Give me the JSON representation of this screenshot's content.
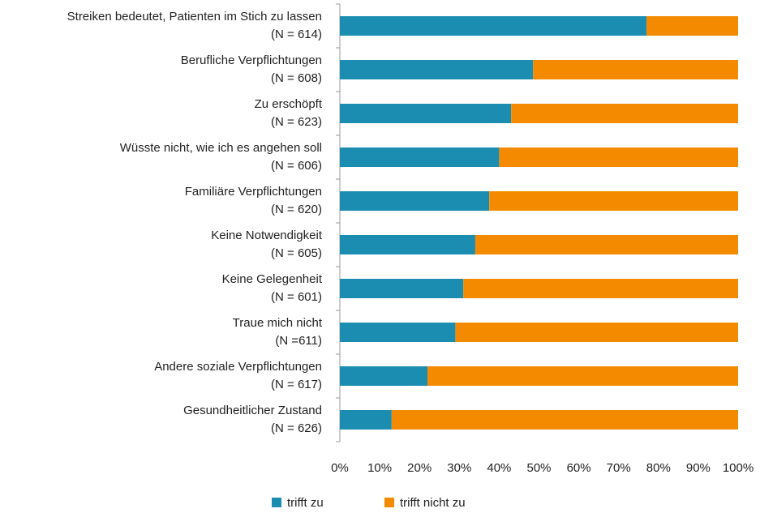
{
  "chart_data": {
    "type": "stacked_barh",
    "categories": [
      [
        "Streiken bedeutet, Patienten im Stich zu lassen",
        "(N = 614)"
      ],
      [
        "Berufliche Verpflichtungen",
        "(N = 608)"
      ],
      [
        "Zu erschöpft",
        "(N = 623)"
      ],
      [
        "Wüsste nicht, wie ich es angehen soll",
        "(N = 606)"
      ],
      [
        "Familiäre Verpflichtungen",
        "(N = 620)"
      ],
      [
        "Keine Notwendigkeit",
        "(N = 605)"
      ],
      [
        "Keine Gelegenheit",
        "(N = 601)"
      ],
      [
        "Traue mich nicht",
        "(N =611)"
      ],
      [
        "Andere soziale Verpflichtungen",
        "(N = 617)"
      ],
      [
        "Gesundheitlicher Zustand",
        "(N = 626)"
      ]
    ],
    "series": [
      {
        "name": "trifft zu",
        "color": "#1b8db1",
        "values": [
          77,
          48.5,
          43,
          40,
          37.5,
          34,
          31,
          29,
          22,
          13
        ]
      },
      {
        "name": "trifft nicht zu",
        "color": "#f38a00",
        "values": [
          23,
          51.5,
          57,
          60,
          62.5,
          66,
          69,
          71,
          78,
          87
        ]
      }
    ],
    "xlim": [
      0,
      100
    ],
    "xticks": [
      {
        "value": 0,
        "label": "0%"
      },
      {
        "value": 10,
        "label": "10%"
      },
      {
        "value": 20,
        "label": "20%"
      },
      {
        "value": 30,
        "label": "30%"
      },
      {
        "value": 40,
        "label": "40%"
      },
      {
        "value": 50,
        "label": "50%"
      },
      {
        "value": 60,
        "label": "60%"
      },
      {
        "value": 70,
        "label": "70%"
      },
      {
        "value": 80,
        "label": "80%"
      },
      {
        "value": 90,
        "label": "90%"
      },
      {
        "value": 100,
        "label": "100%"
      }
    ],
    "grid": false,
    "legend": "bottom"
  }
}
